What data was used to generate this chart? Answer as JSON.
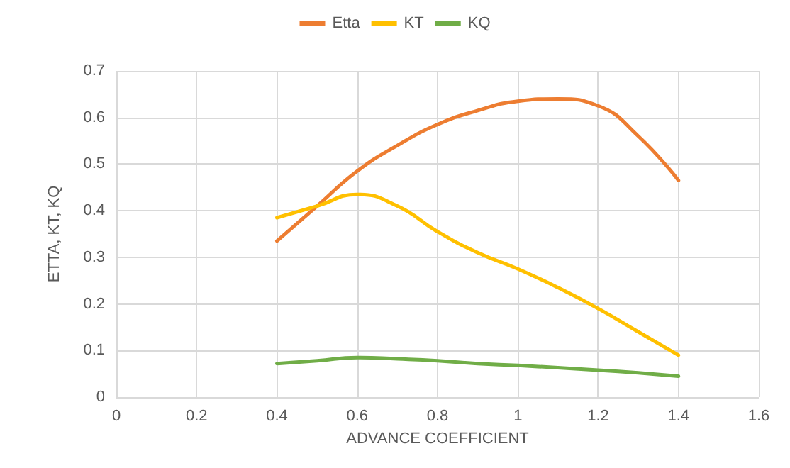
{
  "chart_data": {
    "type": "line",
    "xlabel": "ADVANCE COEFFICIENT",
    "ylabel": "ETTA, KT, KQ",
    "x": [
      0.4,
      0.5,
      0.6,
      0.7,
      0.8,
      0.9,
      1.0,
      1.1,
      1.2,
      1.3,
      1.4
    ],
    "series": [
      {
        "name": "Etta",
        "color": "#ed7d31",
        "values": [
          0.335,
          0.41,
          0.485,
          0.54,
          0.585,
          0.615,
          0.635,
          0.64,
          0.625,
          0.56,
          0.465
        ]
      },
      {
        "name": "KT",
        "color": "#ffc000",
        "values": [
          0.385,
          0.41,
          0.435,
          0.41,
          0.355,
          0.31,
          0.275,
          0.235,
          0.19,
          0.14,
          0.09
        ]
      },
      {
        "name": "KQ",
        "color": "#70ad47",
        "values": [
          0.072,
          0.078,
          0.085,
          0.082,
          0.078,
          0.072,
          0.068,
          0.063,
          0.058,
          0.052,
          0.045
        ]
      }
    ],
    "xlim": [
      0,
      1.6
    ],
    "xticks": [
      0,
      0.2,
      0.4,
      0.6,
      0.8,
      1,
      1.2,
      1.4,
      1.6
    ],
    "ylim": [
      0,
      0.7
    ],
    "yticks": [
      0,
      0.1,
      0.2,
      0.3,
      0.4,
      0.5,
      0.6,
      0.7
    ],
    "grid": true,
    "legend": "top",
    "marker": "none",
    "line_style": "solid"
  }
}
